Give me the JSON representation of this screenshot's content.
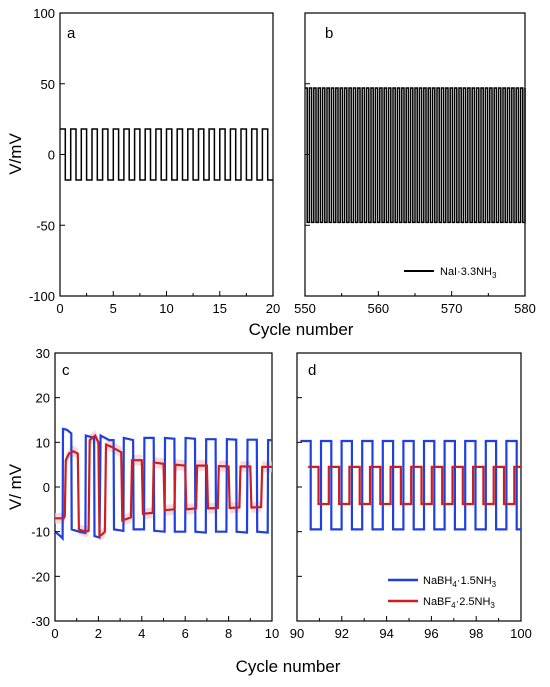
{
  "colors": {
    "black": "#000000",
    "blue": "#1f3fe0",
    "red": "#cc1f1f",
    "band": "#f6c6d2"
  },
  "x_label_top": "Cycle number",
  "x_label_bottom": "Cycle number",
  "y_label_top": "V/mV",
  "y_label_bottom": "V/ mV",
  "chart_data": [
    {
      "id": "a",
      "type": "line",
      "panel_label": "a",
      "xlim": [
        0,
        20
      ],
      "ylim": [
        -100,
        100
      ],
      "xticks": [
        0,
        5,
        10,
        15,
        20
      ],
      "yticks": [
        -100,
        -50,
        0,
        50,
        100
      ],
      "series": [
        {
          "color": "black",
          "square_wave": {
            "start": 0,
            "end": 20,
            "period": 1,
            "high": 18,
            "low": -18
          }
        }
      ]
    },
    {
      "id": "b",
      "type": "line",
      "panel_label": "b",
      "xlim": [
        550,
        580
      ],
      "ylim": [
        -100,
        100
      ],
      "xticks": [
        550,
        560,
        570,
        580
      ],
      "yticks": [],
      "legend": {
        "placement": "bottom-right",
        "entries": [
          {
            "label": "NaI·3.3NH",
            "sub": "3",
            "color": "black"
          }
        ]
      },
      "series": [
        {
          "color": "black",
          "square_wave": {
            "start": 550,
            "end": 580,
            "period": 0.6,
            "high": 47,
            "low": -48
          }
        }
      ]
    },
    {
      "id": "c",
      "type": "line",
      "panel_label": "c",
      "xlim": [
        0,
        10
      ],
      "ylim": [
        -30,
        30
      ],
      "xticks": [
        0,
        2,
        4,
        6,
        8,
        10
      ],
      "yticks": [
        -30,
        -20,
        -10,
        0,
        10,
        20,
        30
      ],
      "series": [
        {
          "color": "blue",
          "points": [
            [
              0,
              -10
            ],
            [
              0.25,
              -11
            ],
            [
              0.35,
              -11.5
            ],
            [
              0.37,
              13
            ],
            [
              0.55,
              12.8
            ],
            [
              0.75,
              12
            ],
            [
              0.77,
              -9.5
            ],
            [
              1.1,
              -10
            ],
            [
              1.4,
              -10.3
            ],
            [
              1.42,
              11.5
            ],
            [
              1.8,
              11
            ],
            [
              1.82,
              -11
            ],
            [
              2.05,
              -11.3
            ],
            [
              2.1,
              11.5
            ],
            [
              2.5,
              10.5
            ],
            [
              2.7,
              10.5
            ],
            [
              2.72,
              -9.5
            ],
            [
              3.15,
              -9.8
            ],
            [
              3.17,
              11
            ],
            [
              3.6,
              10.5
            ],
            [
              3.62,
              -9.5
            ],
            [
              4.1,
              -9.5
            ],
            [
              4.12,
              11
            ],
            [
              4.55,
              11
            ],
            [
              4.57,
              -9.8
            ],
            [
              5.05,
              -10
            ],
            [
              5.07,
              11
            ],
            [
              5.5,
              10.8
            ],
            [
              5.52,
              -10
            ],
            [
              6.0,
              -10
            ],
            [
              6.02,
              11
            ],
            [
              6.45,
              10.8
            ],
            [
              6.47,
              -10
            ],
            [
              6.95,
              -10.2
            ],
            [
              6.97,
              10.7
            ],
            [
              7.4,
              10.7
            ],
            [
              7.42,
              -10
            ],
            [
              7.9,
              -10
            ],
            [
              7.92,
              10.7
            ],
            [
              8.35,
              10.6
            ],
            [
              8.37,
              -10
            ],
            [
              8.85,
              -10.2
            ],
            [
              8.87,
              10.6
            ],
            [
              9.3,
              10.6
            ],
            [
              9.32,
              -10
            ],
            [
              9.8,
              -10.2
            ],
            [
              9.82,
              10.5
            ],
            [
              10,
              10.5
            ]
          ]
        },
        {
          "color": "red",
          "points": [
            [
              0,
              -7
            ],
            [
              0.4,
              -7
            ],
            [
              0.45,
              -6.5
            ],
            [
              0.5,
              6
            ],
            [
              0.65,
              7.5
            ],
            [
              0.85,
              8
            ],
            [
              1.05,
              7.5
            ],
            [
              1.1,
              -9.5
            ],
            [
              1.4,
              -10
            ],
            [
              1.55,
              -9.8
            ],
            [
              1.6,
              10.5
            ],
            [
              1.85,
              11.5
            ],
            [
              2.0,
              10
            ],
            [
              2.05,
              -11
            ],
            [
              2.2,
              -10.5
            ],
            [
              2.3,
              -10
            ],
            [
              2.35,
              9.5
            ],
            [
              2.6,
              9
            ],
            [
              2.9,
              8.2
            ],
            [
              3.05,
              7.8
            ],
            [
              3.1,
              -7.5
            ],
            [
              3.5,
              -6.8
            ],
            [
              3.55,
              6
            ],
            [
              4.0,
              6
            ],
            [
              4.05,
              -6
            ],
            [
              4.5,
              -5.8
            ],
            [
              4.55,
              5.5
            ],
            [
              5.0,
              5.2
            ],
            [
              5.05,
              -5.2
            ],
            [
              5.5,
              -5
            ],
            [
              5.55,
              5
            ],
            [
              6.0,
              4.8
            ],
            [
              6.05,
              -5
            ],
            [
              6.5,
              -4.8
            ],
            [
              6.55,
              4.8
            ],
            [
              7.0,
              4.8
            ],
            [
              7.05,
              -4.8
            ],
            [
              7.5,
              -4.7
            ],
            [
              7.55,
              4.7
            ],
            [
              8.0,
              4.6
            ],
            [
              8.05,
              -4.7
            ],
            [
              8.5,
              -4.6
            ],
            [
              8.55,
              4.6
            ],
            [
              9.0,
              4.6
            ],
            [
              9.05,
              -4.6
            ],
            [
              9.5,
              -4.5
            ],
            [
              9.55,
              4.5
            ],
            [
              10,
              4.5
            ]
          ]
        }
      ]
    },
    {
      "id": "d",
      "type": "line",
      "panel_label": "d",
      "xlim": [
        90,
        100
      ],
      "ylim": [
        -30,
        30
      ],
      "xticks": [
        90,
        92,
        94,
        96,
        98,
        100
      ],
      "yticks": [],
      "legend": {
        "placement": "bottom-right",
        "entries": [
          {
            "label": "NaBH",
            "sub": "4",
            "rest": "·1.5NH",
            "sub2": "3",
            "color": "blue"
          },
          {
            "label": "NaBF",
            "sub": "4",
            "rest": "·2.5NH",
            "sub2": "3",
            "color": "red"
          }
        ]
      },
      "series": [
        {
          "color": "blue",
          "square_wave": {
            "start": 90.15,
            "end": 100,
            "period": 0.92,
            "high": 10.3,
            "low": -9.5
          }
        },
        {
          "color": "red",
          "square_wave": {
            "start": 90.5,
            "end": 100,
            "period": 0.92,
            "high": 4.5,
            "low": -3.8
          }
        }
      ]
    }
  ]
}
